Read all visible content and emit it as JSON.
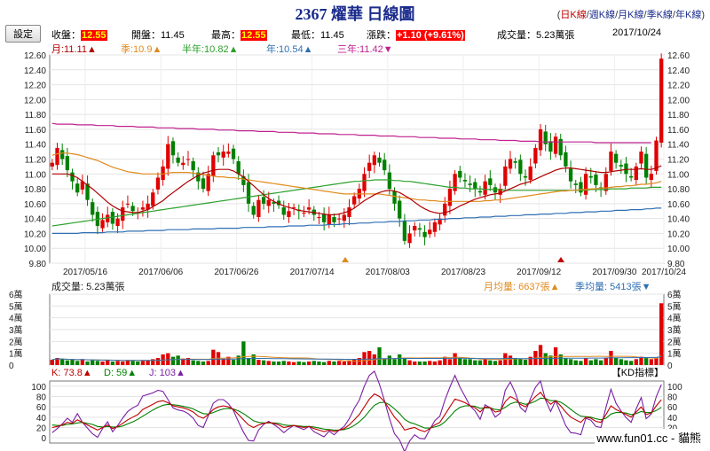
{
  "header": {
    "title": "2367 燿華  日線圖",
    "links": [
      "日K線",
      "週K線",
      "月K線",
      "季K線",
      "年K線"
    ],
    "active_link": 0,
    "settings_label": "設定"
  },
  "quote": {
    "close_label": "收盤：",
    "close": "12.55",
    "open_label": "開盤：",
    "open": "11.45",
    "high_label": "最高：",
    "high": "12.55",
    "low_label": "最低：",
    "low": "11.45",
    "change_label": "漲跌：",
    "change": "+1.10 (+9.61%)",
    "volume_label": "成交量：",
    "volume": "5.23萬張",
    "date": "2017/10/24"
  },
  "ma": [
    {
      "label": "月:11.11▲",
      "color": "#b00000"
    },
    {
      "label": "季:10.9▲",
      "color": "#e08a1e"
    },
    {
      "label": "半年:10.82▲",
      "color": "#2ca02c"
    },
    {
      "label": "年:10.54▲",
      "color": "#2f6fb3"
    },
    {
      "label": "三年:11.42▼",
      "color": "#c0208f"
    }
  ],
  "volume_panel": {
    "label": "成交量: 5.23萬張",
    "month_avg": "月均量: 6637張▲",
    "quarter_avg": "季均量: 5413張▼"
  },
  "kd": {
    "k_label": "K: 73.8▲",
    "d_label": "D: 59▲",
    "j_label": "J: 103▲",
    "indicator_label": "【KD指標】"
  },
  "watermark": "www.fun01.cc - 貓熊",
  "chart_data": {
    "type": "candlestick",
    "x_ticks": [
      "2017/05/16",
      "2017/06/06",
      "2017/06/26",
      "2017/07/14",
      "2017/08/03",
      "2017/08/23",
      "2017/09/12",
      "2017/09/30",
      "2017/10/24"
    ],
    "price_axis": {
      "ylim": [
        9.8,
        12.6
      ],
      "ticks": [
        "12.60",
        "12.40",
        "12.20",
        "12.00",
        "11.80",
        "11.60",
        "11.40",
        "11.20",
        "11.00",
        "10.80",
        "10.60",
        "10.40",
        "10.20",
        "10.00",
        "9.80"
      ]
    },
    "volume_axis": {
      "ylim": [
        0,
        6
      ],
      "ticks": [
        "6萬",
        "5萬",
        "4萬",
        "3萬",
        "2萬",
        "1萬",
        "0"
      ]
    },
    "kd_axis": {
      "ylim": [
        -10,
        110
      ],
      "ticks": [
        "100",
        "80",
        "60",
        "40",
        "20",
        "0"
      ]
    },
    "close": [
      11.15,
      11.35,
      11.2,
      11.05,
      10.9,
      10.75,
      10.9,
      10.65,
      10.45,
      10.3,
      10.38,
      10.45,
      10.33,
      10.4,
      10.55,
      10.6,
      10.5,
      10.48,
      10.55,
      10.6,
      10.75,
      10.95,
      11.1,
      11.4,
      11.25,
      11.15,
      11.15,
      11.2,
      11.05,
      10.9,
      10.8,
      11.0,
      11.25,
      11.25,
      11.3,
      11.3,
      11.2,
      11.0,
      10.85,
      10.6,
      10.45,
      10.65,
      10.6,
      10.65,
      10.6,
      10.58,
      10.45,
      10.5,
      10.55,
      10.5,
      10.48,
      10.55,
      10.45,
      10.42,
      10.35,
      10.45,
      10.35,
      10.4,
      10.45,
      10.55,
      10.7,
      10.8,
      11.0,
      11.15,
      11.25,
      11.15,
      11.05,
      10.8,
      10.6,
      10.4,
      10.1,
      10.2,
      10.3,
      10.25,
      10.15,
      10.25,
      10.35,
      10.4,
      10.6,
      10.8,
      11.0,
      10.95,
      10.9,
      10.85,
      10.8,
      10.75,
      10.9,
      10.85,
      10.75,
      10.8,
      11.1,
      11.2,
      11.15,
      11.0,
      10.95,
      11.1,
      11.35,
      11.6,
      11.4,
      11.3,
      11.5,
      11.25,
      11.1,
      10.9,
      10.85,
      10.75,
      11.0,
      10.95,
      10.85,
      10.8,
      11.0,
      11.3,
      11.15,
      11.1,
      11.0,
      10.95,
      11.1,
      11.3,
      10.95,
      11.0,
      11.45,
      12.55
    ],
    "ma_month": [
      11.0,
      11.0,
      11.0,
      11.0,
      10.98,
      10.95,
      10.9,
      10.85,
      10.8,
      10.74,
      10.68,
      10.62,
      10.57,
      10.53,
      10.5,
      10.49,
      10.48,
      10.48,
      10.5,
      10.52,
      10.56,
      10.6,
      10.64,
      10.7,
      10.75,
      10.8,
      10.85,
      10.9,
      10.94,
      10.98,
      11.01,
      11.03,
      11.05,
      11.06,
      11.06,
      11.06,
      11.04,
      11.0,
      10.96,
      10.9,
      10.84,
      10.78,
      10.72,
      10.67,
      10.63,
      10.6,
      10.57,
      10.55,
      10.53,
      10.51,
      10.5,
      10.49,
      10.48,
      10.47,
      10.46,
      10.45,
      10.45,
      10.46,
      10.48,
      10.5,
      10.54,
      10.59,
      10.64,
      10.68,
      10.72,
      10.75,
      10.77,
      10.78,
      10.77,
      10.75,
      10.71,
      10.67,
      10.62,
      10.57,
      10.53,
      10.5,
      10.48,
      10.47,
      10.48,
      10.5,
      10.53,
      10.57,
      10.6,
      10.63,
      10.66,
      10.68,
      10.7,
      10.72,
      10.73,
      10.74,
      10.77,
      10.8,
      10.83,
      10.86,
      10.88,
      10.9,
      10.93,
      10.96,
      10.99,
      11.02,
      11.05,
      11.07,
      11.08,
      11.08,
      11.07,
      11.06,
      11.05,
      11.04,
      11.03,
      11.02,
      11.02,
      11.03,
      11.04,
      11.05,
      11.06,
      11.06,
      11.06,
      11.07,
      11.06,
      11.06,
      11.08,
      11.11
    ],
    "ma_quarter": [
      11.25,
      11.27,
      11.28,
      11.28,
      11.27,
      11.26,
      11.24,
      11.22,
      11.2,
      11.18,
      11.15,
      11.12,
      11.09,
      11.07,
      11.05,
      11.03,
      11.02,
      11.01,
      11.0,
      11.0,
      11.0,
      11.0,
      11.0,
      11.01,
      11.02,
      11.02,
      11.02,
      11.02,
      11.01,
      11.0,
      10.99,
      10.98,
      10.97,
      10.96,
      10.96,
      10.95,
      10.95,
      10.94,
      10.93,
      10.92,
      10.91,
      10.9,
      10.89,
      10.88,
      10.87,
      10.86,
      10.85,
      10.84,
      10.83,
      10.82,
      10.81,
      10.8,
      10.79,
      10.78,
      10.77,
      10.76,
      10.75,
      10.74,
      10.73,
      10.73,
      10.73,
      10.73,
      10.73,
      10.73,
      10.73,
      10.73,
      10.72,
      10.71,
      10.7,
      10.69,
      10.68,
      10.67,
      10.66,
      10.65,
      10.65,
      10.64,
      10.64,
      10.63,
      10.63,
      10.63,
      10.63,
      10.63,
      10.63,
      10.63,
      10.63,
      10.63,
      10.64,
      10.64,
      10.65,
      10.65,
      10.66,
      10.67,
      10.68,
      10.69,
      10.7,
      10.71,
      10.72,
      10.73,
      10.74,
      10.75,
      10.76,
      10.77,
      10.77,
      10.78,
      10.78,
      10.79,
      10.79,
      10.8,
      10.8,
      10.81,
      10.81,
      10.82,
      10.83,
      10.83,
      10.84,
      10.84,
      10.85,
      10.86,
      10.86,
      10.87,
      10.88,
      10.9
    ],
    "ma_half_year": [
      10.3,
      10.31,
      10.32,
      10.33,
      10.34,
      10.35,
      10.36,
      10.37,
      10.38,
      10.39,
      10.4,
      10.41,
      10.42,
      10.43,
      10.44,
      10.45,
      10.46,
      10.47,
      10.48,
      10.49,
      10.5,
      10.51,
      10.52,
      10.53,
      10.54,
      10.55,
      10.56,
      10.57,
      10.58,
      10.59,
      10.6,
      10.61,
      10.62,
      10.63,
      10.64,
      10.65,
      10.66,
      10.67,
      10.68,
      10.69,
      10.7,
      10.71,
      10.72,
      10.73,
      10.74,
      10.75,
      10.76,
      10.77,
      10.78,
      10.79,
      10.8,
      10.81,
      10.82,
      10.83,
      10.84,
      10.85,
      10.86,
      10.87,
      10.88,
      10.89,
      10.9,
      10.9,
      10.91,
      10.91,
      10.92,
      10.92,
      10.92,
      10.92,
      10.91,
      10.91,
      10.9,
      10.9,
      10.89,
      10.88,
      10.87,
      10.86,
      10.85,
      10.84,
      10.83,
      10.82,
      10.82,
      10.81,
      10.81,
      10.8,
      10.8,
      10.8,
      10.79,
      10.79,
      10.79,
      10.79,
      10.78,
      10.78,
      10.78,
      10.78,
      10.78,
      10.78,
      10.78,
      10.78,
      10.78,
      10.78,
      10.78,
      10.78,
      10.78,
      10.78,
      10.78,
      10.78,
      10.78,
      10.79,
      10.79,
      10.79,
      10.79,
      10.8,
      10.8,
      10.8,
      10.8,
      10.81,
      10.81,
      10.81,
      10.81,
      10.82,
      10.82,
      10.82
    ],
    "ma_year": [
      10.2,
      10.2,
      10.2,
      10.2,
      10.2,
      10.2,
      10.21,
      10.21,
      10.21,
      10.21,
      10.21,
      10.22,
      10.22,
      10.22,
      10.22,
      10.23,
      10.23,
      10.23,
      10.23,
      10.24,
      10.24,
      10.24,
      10.24,
      10.25,
      10.25,
      10.25,
      10.25,
      10.25,
      10.26,
      10.26,
      10.26,
      10.26,
      10.26,
      10.27,
      10.27,
      10.27,
      10.27,
      10.27,
      10.28,
      10.28,
      10.28,
      10.28,
      10.28,
      10.29,
      10.29,
      10.29,
      10.29,
      10.3,
      10.3,
      10.3,
      10.3,
      10.31,
      10.31,
      10.31,
      10.31,
      10.32,
      10.32,
      10.32,
      10.33,
      10.33,
      10.33,
      10.34,
      10.34,
      10.34,
      10.35,
      10.35,
      10.35,
      10.36,
      10.36,
      10.36,
      10.37,
      10.37,
      10.37,
      10.38,
      10.38,
      10.38,
      10.39,
      10.39,
      10.39,
      10.4,
      10.4,
      10.4,
      10.41,
      10.41,
      10.41,
      10.42,
      10.42,
      10.42,
      10.43,
      10.43,
      10.43,
      10.44,
      10.44,
      10.44,
      10.45,
      10.45,
      10.45,
      10.46,
      10.46,
      10.46,
      10.47,
      10.47,
      10.47,
      10.48,
      10.48,
      10.48,
      10.49,
      10.49,
      10.49,
      10.5,
      10.5,
      10.5,
      10.51,
      10.51,
      10.51,
      10.52,
      10.52,
      10.52,
      10.53,
      10.53,
      10.54,
      10.54
    ],
    "ma_three_year": [
      11.68,
      11.67,
      11.67,
      11.67,
      11.67,
      11.66,
      11.66,
      11.66,
      11.66,
      11.65,
      11.65,
      11.65,
      11.65,
      11.64,
      11.64,
      11.64,
      11.64,
      11.63,
      11.63,
      11.63,
      11.63,
      11.62,
      11.62,
      11.62,
      11.62,
      11.61,
      11.61,
      11.61,
      11.61,
      11.6,
      11.6,
      11.6,
      11.6,
      11.59,
      11.59,
      11.59,
      11.59,
      11.58,
      11.58,
      11.58,
      11.58,
      11.57,
      11.57,
      11.57,
      11.57,
      11.56,
      11.56,
      11.56,
      11.56,
      11.55,
      11.55,
      11.55,
      11.55,
      11.54,
      11.54,
      11.54,
      11.54,
      11.53,
      11.53,
      11.53,
      11.53,
      11.52,
      11.52,
      11.52,
      11.52,
      11.51,
      11.51,
      11.51,
      11.51,
      11.5,
      11.5,
      11.5,
      11.5,
      11.49,
      11.49,
      11.49,
      11.49,
      11.48,
      11.48,
      11.48,
      11.48,
      11.47,
      11.47,
      11.47,
      11.47,
      11.46,
      11.46,
      11.46,
      11.46,
      11.45,
      11.45,
      11.45,
      11.45,
      11.44,
      11.44,
      11.44,
      11.44,
      11.43,
      11.43,
      11.43,
      11.43,
      11.43,
      11.43,
      11.43,
      11.43,
      11.43,
      11.43,
      11.43,
      11.42,
      11.42,
      11.42,
      11.42,
      11.42,
      11.42,
      11.42,
      11.42,
      11.42,
      11.42,
      11.42,
      11.42
    ],
    "volume_wan": [
      0.45,
      0.6,
      0.5,
      0.4,
      0.45,
      0.35,
      0.5,
      0.3,
      0.4,
      0.35,
      0.3,
      0.45,
      0.3,
      0.35,
      0.3,
      0.4,
      0.35,
      0.3,
      0.35,
      0.4,
      0.5,
      0.6,
      0.9,
      1.0,
      0.7,
      0.8,
      0.55,
      0.6,
      0.4,
      0.35,
      0.3,
      0.35,
      1.3,
      1.1,
      0.5,
      0.7,
      0.45,
      0.8,
      2.0,
      0.6,
      0.9,
      0.45,
      0.4,
      0.35,
      0.3,
      0.3,
      0.35,
      0.3,
      0.25,
      0.3,
      0.25,
      0.3,
      0.35,
      0.3,
      0.25,
      0.35,
      0.3,
      0.35,
      0.3,
      0.4,
      0.5,
      0.6,
      1.1,
      1.2,
      0.9,
      1.5,
      0.5,
      0.8,
      0.5,
      0.9,
      0.6,
      0.4,
      0.3,
      0.3,
      0.3,
      0.35,
      0.3,
      0.4,
      0.7,
      0.5,
      1.0,
      0.6,
      0.5,
      0.5,
      0.4,
      0.4,
      0.5,
      0.4,
      0.35,
      0.4,
      1.0,
      0.8,
      0.6,
      0.5,
      0.45,
      0.7,
      1.2,
      1.7,
      1.0,
      0.8,
      1.5,
      0.9,
      0.6,
      0.5,
      0.4,
      0.35,
      0.6,
      0.4,
      0.5,
      0.4,
      0.6,
      1.2,
      0.6,
      0.5,
      0.4,
      0.35,
      0.5,
      0.7,
      0.6,
      0.5,
      0.6,
      5.23
    ],
    "kd_k": [
      20,
      22,
      25,
      30,
      28,
      35,
      30,
      25,
      20,
      15,
      20,
      25,
      18,
      22,
      28,
      35,
      40,
      45,
      55,
      60,
      65,
      70,
      72,
      68,
      62,
      60,
      58,
      55,
      50,
      42,
      38,
      45,
      55,
      60,
      62,
      60,
      55,
      45,
      35,
      25,
      20,
      25,
      28,
      30,
      28,
      25,
      20,
      22,
      24,
      22,
      20,
      22,
      18,
      15,
      12,
      15,
      12,
      15,
      18,
      25,
      35,
      45,
      60,
      75,
      85,
      80,
      70,
      55,
      40,
      30,
      15,
      18,
      20,
      15,
      12,
      18,
      25,
      30,
      45,
      60,
      75,
      72,
      68,
      62,
      58,
      50,
      60,
      58,
      50,
      52,
      70,
      80,
      75,
      65,
      60,
      70,
      80,
      88,
      75,
      65,
      72,
      62,
      50,
      40,
      35,
      30,
      40,
      38,
      32,
      30,
      45,
      62,
      55,
      50,
      45,
      40,
      50,
      60,
      45,
      48,
      62,
      73.8
    ],
    "kd_d": [
      25,
      24,
      24,
      26,
      27,
      29,
      30,
      28,
      26,
      22,
      21,
      22,
      21,
      21,
      23,
      27,
      31,
      36,
      42,
      48,
      54,
      59,
      63,
      65,
      64,
      63,
      61,
      59,
      56,
      51,
      47,
      46,
      49,
      53,
      56,
      57,
      56,
      52,
      47,
      40,
      33,
      30,
      29,
      29,
      29,
      28,
      25,
      24,
      24,
      23,
      22,
      22,
      21,
      19,
      17,
      16,
      15,
      15,
      16,
      19,
      24,
      31,
      40,
      52,
      63,
      68,
      69,
      64,
      56,
      47,
      36,
      30,
      27,
      23,
      19,
      19,
      21,
      24,
      31,
      41,
      52,
      59,
      62,
      62,
      61,
      57,
      58,
      58,
      55,
      54,
      59,
      66,
      69,
      68,
      65,
      67,
      71,
      77,
      76,
      72,
      72,
      69,
      63,
      55,
      48,
      42,
      41,
      40,
      37,
      35,
      38,
      46,
      49,
      49,
      48,
      45,
      47,
      51,
      49,
      49,
      53,
      59
    ],
    "kd_j": [
      10,
      18,
      27,
      38,
      30,
      47,
      30,
      19,
      8,
      1,
      18,
      31,
      12,
      24,
      38,
      51,
      58,
      63,
      81,
      84,
      87,
      92,
      90,
      74,
      58,
      54,
      52,
      47,
      38,
      24,
      20,
      43,
      67,
      74,
      74,
      66,
      53,
      31,
      11,
      -5,
      -6,
      15,
      26,
      32,
      26,
      19,
      10,
      18,
      24,
      20,
      16,
      22,
      12,
      7,
      2,
      13,
      6,
      15,
      22,
      37,
      57,
      73,
      100,
      121,
      129,
      104,
      72,
      37,
      8,
      -4,
      -27,
      -6,
      6,
      -1,
      -2,
      16,
      33,
      42,
      73,
      98,
      121,
      98,
      80,
      62,
      52,
      36,
      64,
      58,
      40,
      48,
      92,
      108,
      87,
      59,
      50,
      76,
      98,
      110,
      73,
      51,
      72,
      48,
      24,
      10,
      9,
      6,
      38,
      34,
      22,
      20,
      59,
      94,
      67,
      52,
      39,
      30,
      56,
      78,
      37,
      46,
      80,
      103
    ]
  }
}
